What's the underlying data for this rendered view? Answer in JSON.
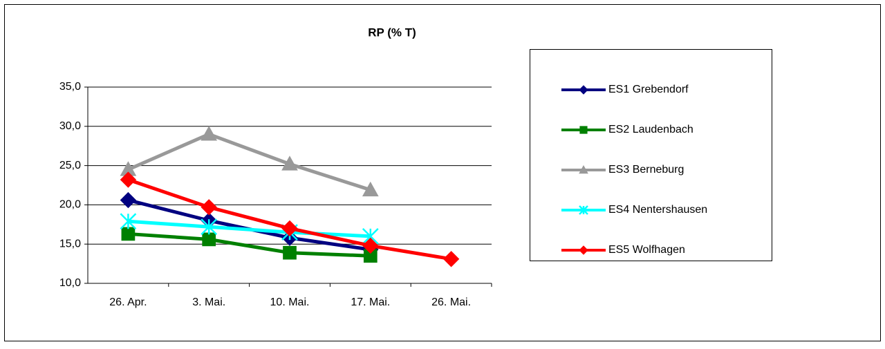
{
  "chart_data": {
    "type": "line",
    "title": "RP (% T)",
    "categories": [
      "26. Apr.",
      "3. Mai.",
      "10. Mai.",
      "17. Mai.",
      "26. Mai."
    ],
    "series": [
      {
        "name": "ES1 Grebendorf",
        "color": "#000080",
        "marker": "diamond",
        "values": [
          20.6,
          18.0,
          15.8,
          14.3,
          null
        ]
      },
      {
        "name": "ES2 Laudenbach",
        "color": "#008000",
        "marker": "square",
        "values": [
          16.3,
          15.6,
          13.9,
          13.5,
          null
        ]
      },
      {
        "name": "ES3 Berneburg",
        "color": "#999999",
        "marker": "triangle",
        "values": [
          24.5,
          29.0,
          25.2,
          21.9,
          null
        ]
      },
      {
        "name": "ES4 Nentershausen",
        "color": "#00ffff",
        "marker": "star",
        "values": [
          17.9,
          17.2,
          16.5,
          16.0,
          null
        ]
      },
      {
        "name": "ES5 Wolfhagen",
        "color": "#ff0000",
        "marker": "diamond",
        "values": [
          23.2,
          19.7,
          17.0,
          14.8,
          13.1
        ]
      }
    ],
    "ylim": [
      10,
      35
    ],
    "yticks": [
      {
        "value": 10,
        "label": "10,0"
      },
      {
        "value": 15,
        "label": "15,0"
      },
      {
        "value": 20,
        "label": "20,0"
      },
      {
        "value": 25,
        "label": "25,0"
      },
      {
        "value": 30,
        "label": "30,0"
      },
      {
        "value": 35,
        "label": "35,0"
      }
    ],
    "grid": true,
    "legend": "right"
  }
}
